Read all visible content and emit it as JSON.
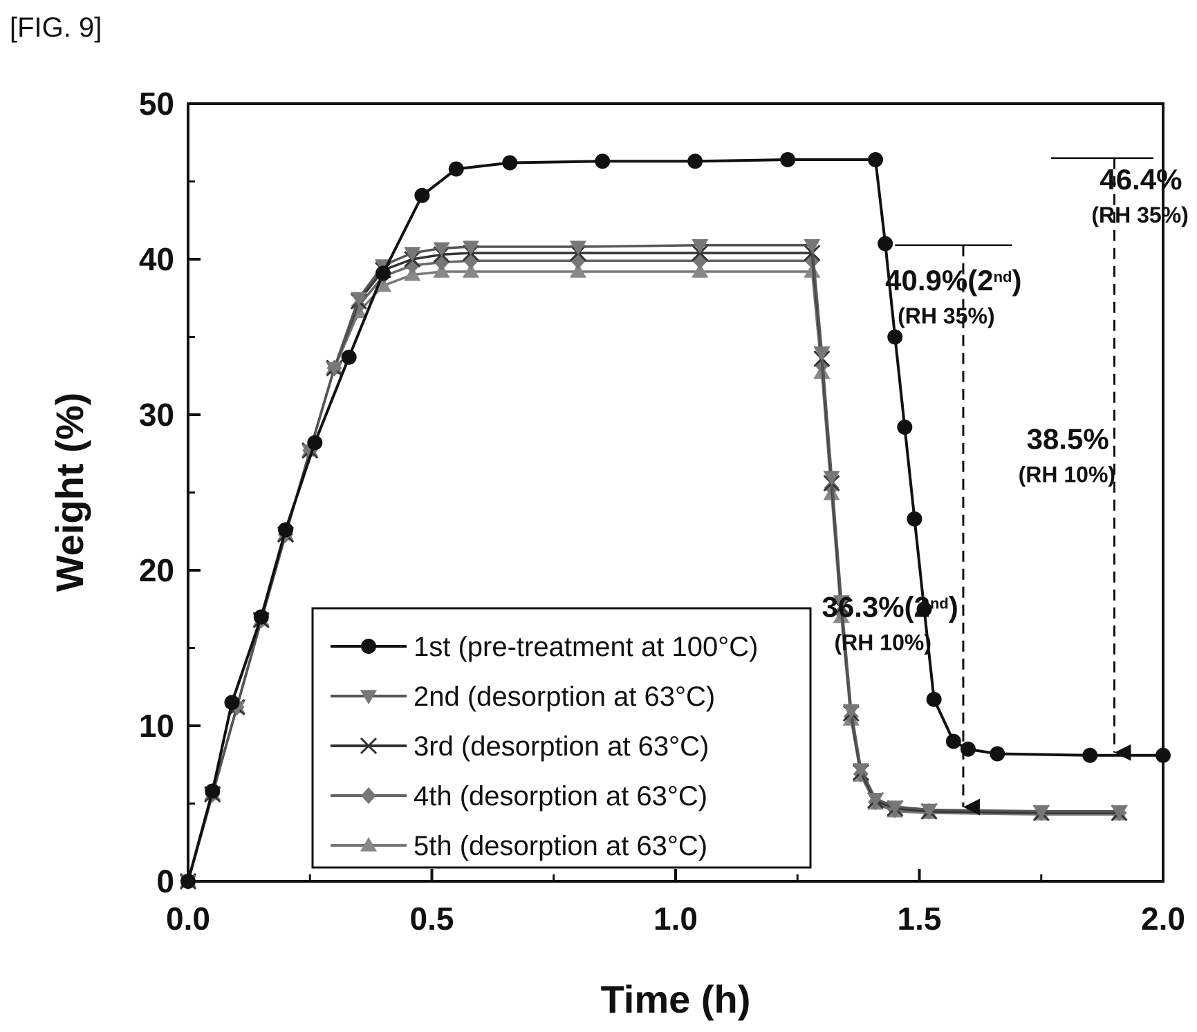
{
  "figure_label": "[FIG. 9]",
  "chart_data": {
    "type": "line",
    "xlabel": "Time (h)",
    "ylabel": "Weight (%)",
    "xlim": [
      0.0,
      2.0
    ],
    "ylim": [
      0,
      50
    ],
    "x_ticks": [
      "0.0",
      "0.5",
      "1.0",
      "1.5",
      "2.0"
    ],
    "y_ticks": [
      "0",
      "10",
      "20",
      "30",
      "40",
      "50"
    ],
    "grid": false,
    "legend_position": "bottom-left",
    "series": [
      {
        "name": "1st (pre-treatment at 100°C)",
        "marker": "circle",
        "x": [
          0.0,
          0.05,
          0.09,
          0.15,
          0.2,
          0.26,
          0.33,
          0.4,
          0.48,
          0.55,
          0.66,
          0.85,
          1.04,
          1.23,
          1.41,
          1.43,
          1.45,
          1.47,
          1.49,
          1.51,
          1.53,
          1.57,
          1.6,
          1.66,
          1.85,
          2.0
        ],
        "y": [
          0,
          5.8,
          11.5,
          17.0,
          22.6,
          28.2,
          33.7,
          39.1,
          44.1,
          45.8,
          46.2,
          46.3,
          46.3,
          46.4,
          46.4,
          41.0,
          35.0,
          29.2,
          23.3,
          17.5,
          11.7,
          9.0,
          8.5,
          8.2,
          8.1,
          8.1
        ]
      },
      {
        "name": "2nd (desorption at 63°C)",
        "marker": "triangle-down",
        "x": [
          0.0,
          0.05,
          0.1,
          0.15,
          0.2,
          0.25,
          0.3,
          0.35,
          0.4,
          0.46,
          0.52,
          0.58,
          0.8,
          1.05,
          1.28,
          1.3,
          1.32,
          1.34,
          1.36,
          1.38,
          1.41,
          1.45,
          1.52,
          1.75,
          1.91
        ],
        "y": [
          0,
          5.6,
          11.2,
          16.8,
          22.3,
          27.7,
          33.0,
          37.5,
          39.6,
          40.4,
          40.7,
          40.8,
          40.8,
          40.9,
          40.9,
          34.0,
          26.0,
          18.0,
          11.0,
          7.2,
          5.3,
          4.8,
          4.6,
          4.5,
          4.5
        ]
      },
      {
        "name": "3rd (desorption at 63°C)",
        "marker": "x",
        "x": [
          0.0,
          0.05,
          0.1,
          0.15,
          0.2,
          0.25,
          0.3,
          0.35,
          0.4,
          0.46,
          0.52,
          0.58,
          0.8,
          1.05,
          1.28,
          1.3,
          1.32,
          1.34,
          1.36,
          1.38,
          1.41,
          1.45,
          1.52,
          1.75,
          1.91
        ],
        "y": [
          0,
          5.6,
          11.2,
          16.8,
          22.3,
          27.7,
          33.0,
          37.3,
          39.3,
          40.0,
          40.3,
          40.4,
          40.4,
          40.4,
          40.4,
          33.6,
          25.6,
          17.6,
          10.8,
          7.0,
          5.2,
          4.7,
          4.5,
          4.4,
          4.4
        ]
      },
      {
        "name": "4th (desorption at 63°C)",
        "marker": "diamond",
        "x": [
          0.0,
          0.05,
          0.1,
          0.15,
          0.2,
          0.25,
          0.3,
          0.35,
          0.4,
          0.46,
          0.52,
          0.58,
          0.8,
          1.05,
          1.28,
          1.3,
          1.32,
          1.34,
          1.36,
          1.38,
          1.41,
          1.45,
          1.52,
          1.75,
          1.91
        ],
        "y": [
          0,
          5.6,
          11.2,
          16.8,
          22.3,
          27.7,
          33.0,
          37.0,
          38.9,
          39.6,
          39.8,
          39.9,
          39.9,
          39.9,
          39.9,
          33.2,
          25.3,
          17.3,
          10.6,
          6.9,
          5.1,
          4.6,
          4.5,
          4.4,
          4.4
        ]
      },
      {
        "name": "5th (desorption at 63°C)",
        "marker": "triangle-up",
        "x": [
          0.0,
          0.05,
          0.1,
          0.15,
          0.2,
          0.25,
          0.3,
          0.35,
          0.4,
          0.46,
          0.52,
          0.58,
          0.8,
          1.05,
          1.28,
          1.3,
          1.32,
          1.34,
          1.36,
          1.38,
          1.41,
          1.45,
          1.52,
          1.75,
          1.91
        ],
        "y": [
          0,
          5.6,
          11.2,
          16.8,
          22.3,
          27.7,
          33.0,
          36.6,
          38.3,
          39.0,
          39.2,
          39.2,
          39.2,
          39.2,
          39.2,
          32.7,
          24.9,
          17.0,
          10.4,
          6.8,
          5.0,
          4.5,
          4.4,
          4.3,
          4.3
        ]
      }
    ],
    "annotations": [
      {
        "text": "46.4%",
        "sub": "(RH 35%)",
        "x": 1.87,
        "y": 44.5,
        "ref_y_top": 46.5,
        "ref_y_bottom": 8.1,
        "arrow_x": 1.9,
        "line_x1": 1.77,
        "line_x2": 1.98
      },
      {
        "text": "40.9%(2",
        "sup": "nd",
        "close": ")",
        "sub": "(RH 35%)",
        "x": 1.43,
        "y": 38.0,
        "ref_y_top": 40.9,
        "arrow_x": 1.59,
        "line_x1": 1.45,
        "line_x2": 1.69
      },
      {
        "text": "38.5%",
        "sub": "(RH 10%)",
        "x": 1.72,
        "y": 27.8,
        "ref_y_bottom": 4.6
      },
      {
        "text": "36.3%(2",
        "sup": "nd",
        "close": ")",
        "sub": "(RH 10%)",
        "x": 1.3,
        "y": 17.0
      }
    ]
  }
}
